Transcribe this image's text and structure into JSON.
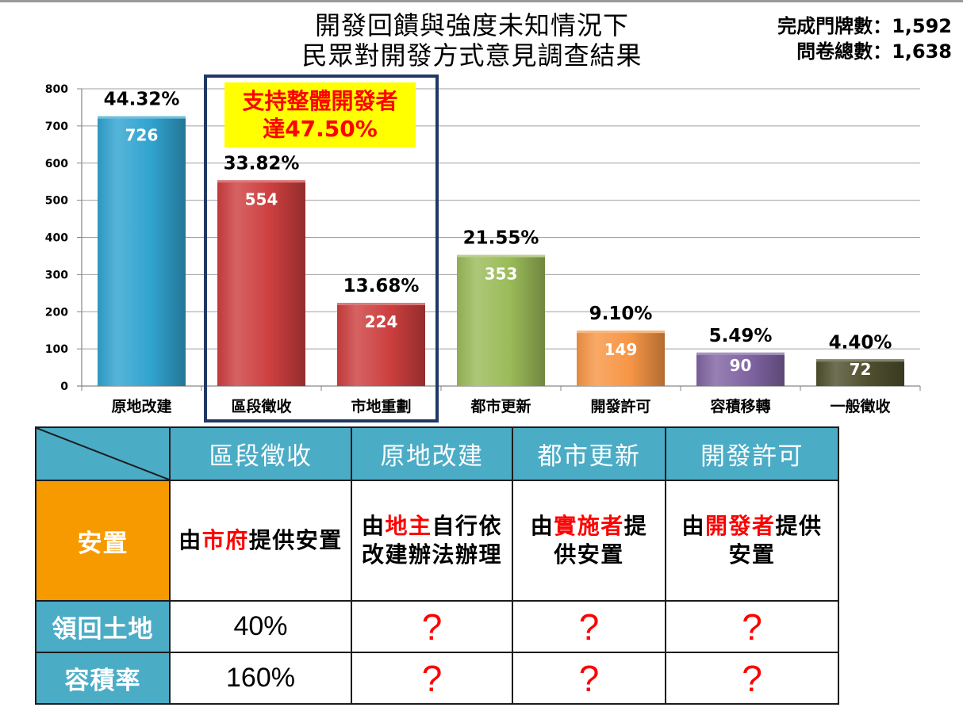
{
  "header": {
    "title_lines": [
      "開發回饋與強度未知情況下",
      "民眾對開發方式意見調查結果"
    ],
    "stats": [
      "完成門牌數：1,592",
      "問卷總數：1,638"
    ]
  },
  "colors": {
    "table_header": "#4bacc6",
    "emphasis": "#ff0000",
    "callout_bg": "#ffff00",
    "highlight_box": "#1f3864",
    "axis": "#868686",
    "grid": "#a0a0a0"
  },
  "chart_data": {
    "type": "bar",
    "categories": [
      "原地改建",
      "區段徵收",
      "市地重劃",
      "都市更新",
      "開發許可",
      "容積移轉",
      "一般徵收"
    ],
    "values": [
      726,
      554,
      224,
      353,
      149,
      90,
      72
    ],
    "percent_labels": [
      "44.32%",
      "33.82%",
      "13.68%",
      "21.55%",
      "9.10%",
      "5.49%",
      "4.40%"
    ],
    "bar_colors": [
      "#31a4d0",
      "#cd3f3f",
      "#cd3f3f",
      "#9bbb59",
      "#f79646",
      "#8064a2",
      "#4f4f2e"
    ],
    "ylim": [
      0,
      800
    ],
    "yticks": [
      0,
      100,
      200,
      300,
      400,
      500,
      600,
      700,
      800
    ],
    "grid": true,
    "highlight": {
      "categories": [
        1,
        2
      ]
    },
    "annotation": {
      "lines": [
        "支持整體開發者",
        "達47.50%"
      ]
    }
  },
  "table": {
    "headers": [
      "區段徵收",
      "原地改建",
      "都市更新",
      "開發許可"
    ],
    "rows": [
      {
        "label": "安置",
        "label_color": "#f79a00",
        "cells": [
          {
            "lines": [
              [
                {
                  "text": "由"
                },
                {
                  "text": "市府",
                  "emphasis": true
                },
                {
                  "text": "提供安置"
                }
              ]
            ]
          },
          {
            "lines": [
              [
                {
                  "text": "由"
                },
                {
                  "text": "地主",
                  "emphasis": true
                },
                {
                  "text": "自行依"
                }
              ],
              [
                {
                  "text": "改建辦法辦理"
                }
              ]
            ]
          },
          {
            "lines": [
              [
                {
                  "text": "由"
                },
                {
                  "text": "實施者",
                  "emphasis": true
                },
                {
                  "text": "提"
                }
              ],
              [
                {
                  "text": "供安置"
                }
              ]
            ]
          },
          {
            "lines": [
              [
                {
                  "text": "由"
                },
                {
                  "text": "開發者",
                  "emphasis": true
                },
                {
                  "text": "提供"
                }
              ],
              [
                {
                  "text": "安置"
                }
              ]
            ]
          }
        ]
      },
      {
        "label": "領回土地",
        "label_color": "#4bacc6",
        "cells": [
          {
            "lines": [
              [
                {
                  "text": "40%"
                }
              ]
            ]
          },
          {
            "lines": [
              [
                {
                  "text": "?",
                  "emphasis": true
                }
              ]
            ]
          },
          {
            "lines": [
              [
                {
                  "text": "?",
                  "emphasis": true
                }
              ]
            ]
          },
          {
            "lines": [
              [
                {
                  "text": "?",
                  "emphasis": true
                }
              ]
            ]
          }
        ]
      },
      {
        "label": "容積率",
        "label_color": "#4bacc6",
        "cells": [
          {
            "lines": [
              [
                {
                  "text": "160%"
                }
              ]
            ]
          },
          {
            "lines": [
              [
                {
                  "text": "?",
                  "emphasis": true
                }
              ]
            ]
          },
          {
            "lines": [
              [
                {
                  "text": "?",
                  "emphasis": true
                }
              ]
            ]
          },
          {
            "lines": [
              [
                {
                  "text": "?",
                  "emphasis": true
                }
              ]
            ]
          }
        ]
      }
    ]
  }
}
